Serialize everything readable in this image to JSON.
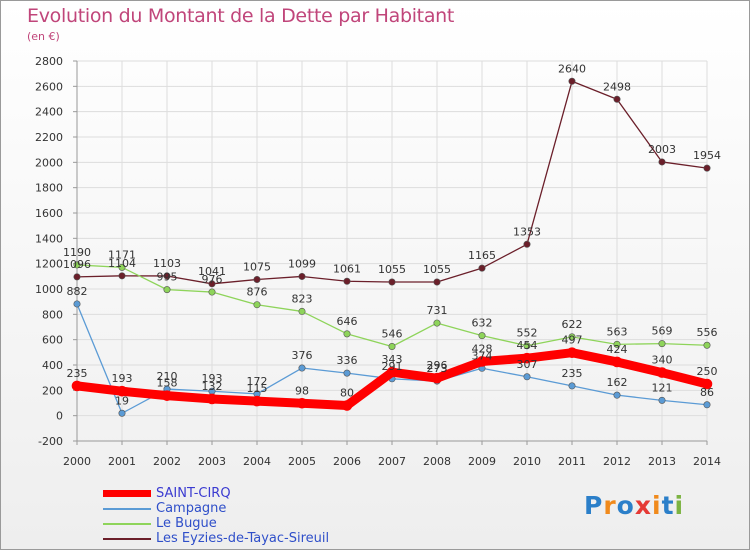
{
  "title": "Evolution du Montant de la Dette par Habitant",
  "subtitle": "(en €)",
  "logo": {
    "text": "Proxiti",
    "letters": [
      "P",
      "r",
      "o",
      "x",
      "i",
      "t",
      "i"
    ],
    "colors": [
      "#2b7fc9",
      "#f08a1c",
      "#2b7fc9",
      "#e53935",
      "#f08a1c",
      "#2b7fc9",
      "#7cb342"
    ]
  },
  "chart_data": {
    "type": "line",
    "x": [
      "2000",
      "2001",
      "2002",
      "2003",
      "2004",
      "2005",
      "2006",
      "2007",
      "2008",
      "2009",
      "2010",
      "2011",
      "2012",
      "2013",
      "2014"
    ],
    "ylim": [
      -200,
      2800
    ],
    "yticks": [
      -200,
      0,
      200,
      400,
      600,
      800,
      1000,
      1200,
      1400,
      1600,
      1800,
      2000,
      2200,
      2400,
      2600,
      2800
    ],
    "grid": true,
    "legend_position": "bottom-left",
    "series": [
      {
        "name": "Les Eyzies-de-Tayac-Sireuil",
        "color": "#6b1f2a",
        "values": [
          1096,
          1104,
          1103,
          1041,
          1075,
          1099,
          1061,
          1055,
          1055,
          1165,
          1353,
          2640,
          2498,
          2003,
          1954
        ]
      },
      {
        "name": "Le Bugue",
        "color": "#8ed45a",
        "values": [
          1190,
          1171,
          995,
          976,
          876,
          823,
          646,
          546,
          731,
          632,
          552,
          622,
          563,
          569,
          556
        ]
      },
      {
        "name": "Campagne",
        "color": "#5b9bd5",
        "values": [
          882,
          19,
          210,
          193,
          172,
          376,
          336,
          291,
          273,
          374,
          307,
          235,
          162,
          121,
          86
        ]
      },
      {
        "name": "SAINT-CIRQ",
        "color": "#ff0000",
        "values": [
          235,
          193,
          158,
          132,
          115,
          98,
          80,
          343,
          296,
          428,
          454,
          497,
          424,
          340,
          250
        ]
      }
    ]
  }
}
